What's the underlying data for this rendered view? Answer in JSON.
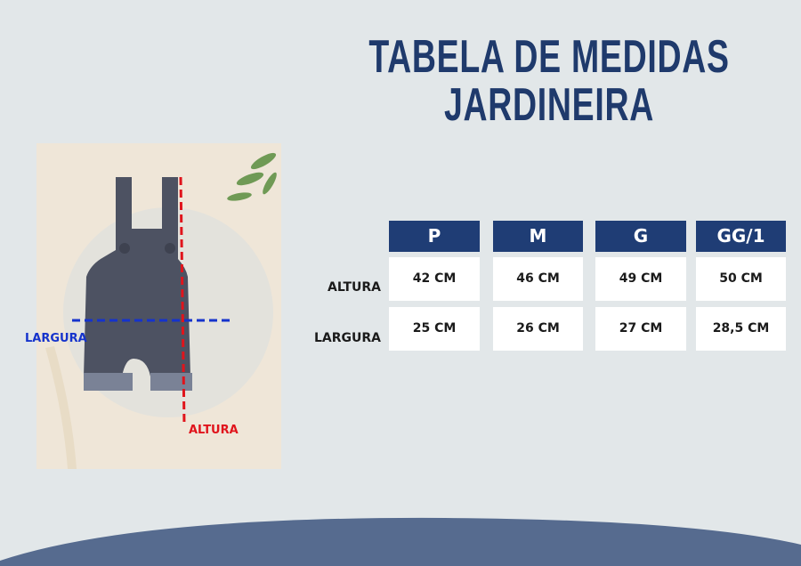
{
  "title": {
    "line1": "TABELA DE MEDIDAS",
    "line2": "JARDINEIRA"
  },
  "photo": {
    "width_label": "LARGURA",
    "height_label": "ALTURA",
    "width_color": "#1533cc",
    "height_color": "#e0141c"
  },
  "table": {
    "columns": [
      "P",
      "M",
      "G",
      "GG/1"
    ],
    "rows": [
      {
        "label": "ALTURA",
        "values": [
          "42 CM",
          "46 CM",
          "49 CM",
          "50 CM"
        ]
      },
      {
        "label": "LARGURA",
        "values": [
          "25 CM",
          "26 CM",
          "27 CM",
          "28,5 CM"
        ]
      }
    ]
  },
  "colors": {
    "header": "#1f3d75",
    "title": "#1f3a6c",
    "background": "#e2e7e9",
    "wave": "#566b8f"
  }
}
